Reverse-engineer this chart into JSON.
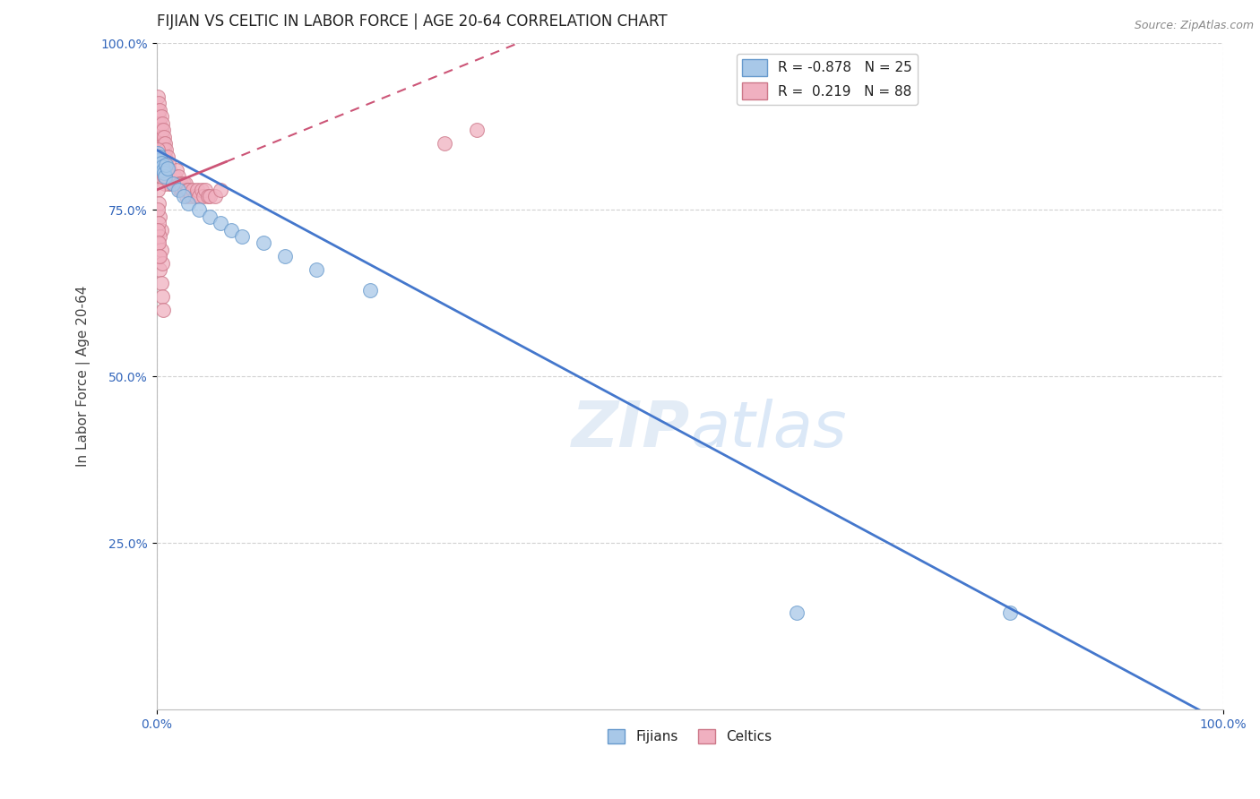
{
  "title": "FIJIAN VS CELTIC IN LABOR FORCE | AGE 20-64 CORRELATION CHART",
  "source": "Source: ZipAtlas.com",
  "ylabel": "In Labor Force | Age 20-64",
  "xlim": [
    0.0,
    1.0
  ],
  "ylim": [
    0.0,
    1.0
  ],
  "fijian_color": "#a8c8e8",
  "fijian_edge_color": "#6699cc",
  "celtic_color": "#f0b0c0",
  "celtic_edge_color": "#cc7788",
  "fijian_label": "Fijians",
  "celtic_label": "Celtics",
  "r_fijian": "-0.878",
  "n_fijian": "25",
  "r_celtic": "0.219",
  "n_celtic": "88",
  "trend_fijian_color": "#4477cc",
  "trend_celtic_color": "#cc5577",
  "watermark_color": "#d8eaf8",
  "background_color": "#ffffff",
  "fijian_x": [
    0.001,
    0.002,
    0.003,
    0.004,
    0.005,
    0.006,
    0.007,
    0.008,
    0.009,
    0.01,
    0.015,
    0.02,
    0.025,
    0.03,
    0.04,
    0.05,
    0.06,
    0.07,
    0.08,
    0.1,
    0.12,
    0.15,
    0.2,
    0.6,
    0.8
  ],
  "fijian_y": [
    0.835,
    0.825,
    0.83,
    0.82,
    0.815,
    0.81,
    0.805,
    0.8,
    0.818,
    0.812,
    0.79,
    0.78,
    0.77,
    0.76,
    0.75,
    0.74,
    0.73,
    0.72,
    0.71,
    0.7,
    0.68,
    0.66,
    0.63,
    0.145,
    0.145
  ],
  "celtic_x": [
    0.001,
    0.001,
    0.002,
    0.002,
    0.002,
    0.003,
    0.003,
    0.003,
    0.004,
    0.004,
    0.004,
    0.005,
    0.005,
    0.005,
    0.006,
    0.006,
    0.006,
    0.007,
    0.007,
    0.007,
    0.008,
    0.008,
    0.009,
    0.009,
    0.01,
    0.01,
    0.011,
    0.011,
    0.012,
    0.012,
    0.013,
    0.014,
    0.015,
    0.016,
    0.017,
    0.018,
    0.019,
    0.02,
    0.021,
    0.022,
    0.023,
    0.024,
    0.025,
    0.026,
    0.027,
    0.028,
    0.029,
    0.03,
    0.032,
    0.034,
    0.036,
    0.038,
    0.04,
    0.042,
    0.044,
    0.046,
    0.048,
    0.05,
    0.055,
    0.06,
    0.001,
    0.002,
    0.003,
    0.004,
    0.005,
    0.006,
    0.007,
    0.008,
    0.001,
    0.002,
    0.003,
    0.004,
    0.001,
    0.002,
    0.003,
    0.004,
    0.005,
    0.006,
    0.001,
    0.002,
    0.003,
    0.004,
    0.005,
    0.001,
    0.002,
    0.003,
    0.27,
    0.3
  ],
  "celtic_y": [
    0.92,
    0.9,
    0.91,
    0.89,
    0.87,
    0.9,
    0.88,
    0.86,
    0.89,
    0.87,
    0.85,
    0.88,
    0.86,
    0.84,
    0.87,
    0.85,
    0.83,
    0.86,
    0.84,
    0.82,
    0.85,
    0.83,
    0.84,
    0.82,
    0.83,
    0.81,
    0.82,
    0.8,
    0.81,
    0.79,
    0.8,
    0.79,
    0.8,
    0.79,
    0.8,
    0.79,
    0.81,
    0.8,
    0.79,
    0.78,
    0.79,
    0.78,
    0.79,
    0.78,
    0.79,
    0.77,
    0.78,
    0.78,
    0.77,
    0.78,
    0.77,
    0.78,
    0.77,
    0.78,
    0.77,
    0.78,
    0.77,
    0.77,
    0.77,
    0.78,
    0.84,
    0.82,
    0.81,
    0.8,
    0.82,
    0.81,
    0.8,
    0.79,
    0.78,
    0.76,
    0.74,
    0.72,
    0.7,
    0.68,
    0.66,
    0.64,
    0.62,
    0.6,
    0.75,
    0.73,
    0.71,
    0.69,
    0.67,
    0.72,
    0.7,
    0.68,
    0.85,
    0.87
  ],
  "title_fontsize": 12,
  "axis_label_fontsize": 11,
  "tick_fontsize": 10,
  "legend_fontsize": 11
}
